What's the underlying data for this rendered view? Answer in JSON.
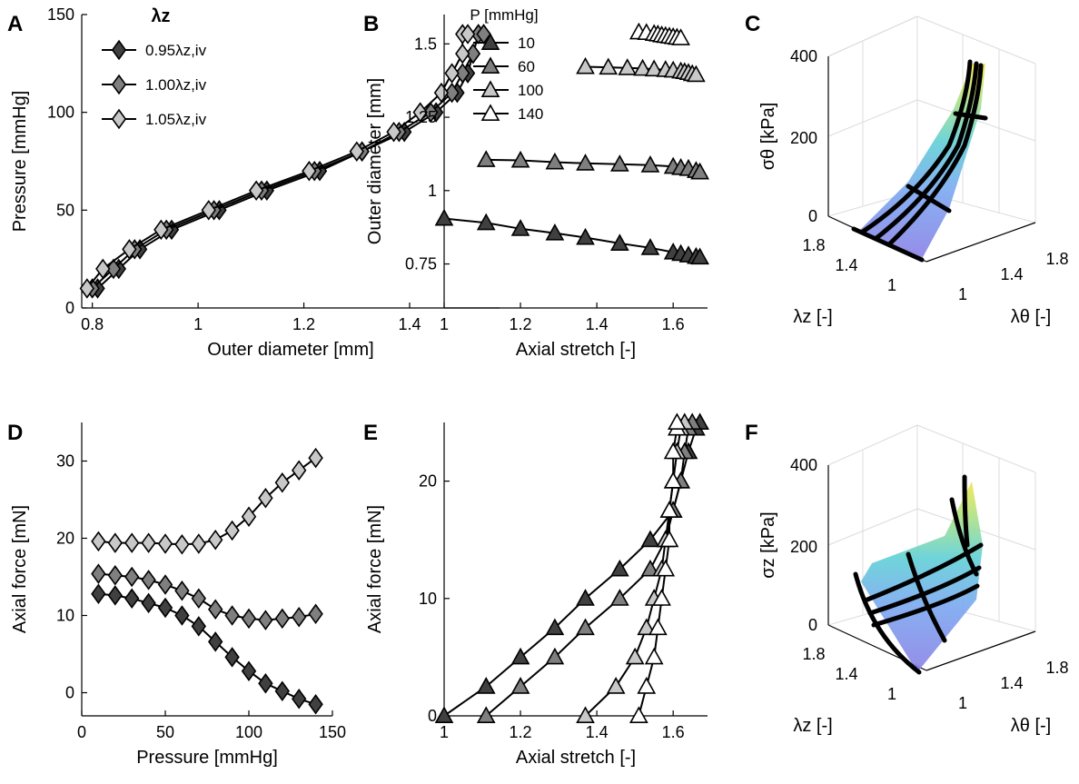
{
  "chart_data": [
    {
      "panel": "A",
      "type": "line",
      "xlabel": "Outer diameter [mm]",
      "ylabel": "Pressure [mmHg]",
      "xlim": [
        0.78,
        1.57
      ],
      "ylim": [
        0,
        150
      ],
      "xticks": [
        "0.8",
        "1",
        "1.2",
        "1.4"
      ],
      "yticks": [
        "0",
        "50",
        "100",
        "150"
      ],
      "legend": {
        "title": "λz",
        "placement": "top-left",
        "entries": [
          "0.95λz,iv",
          "1.00λz,iv",
          "1.05λz,iv"
        ]
      },
      "series": [
        {
          "name": "0.95λz,iv",
          "color": "#404040",
          "x": [
            0.81,
            0.85,
            0.89,
            0.95,
            1.04,
            1.13,
            1.23,
            1.31,
            1.39,
            1.45,
            1.49,
            1.51,
            1.52,
            1.53,
            1.54
          ],
          "y": [
            10,
            20,
            30,
            40,
            50,
            60,
            70,
            80,
            90,
            100,
            110,
            120,
            130,
            140,
            140
          ]
        },
        {
          "name": "1.00λz,iv",
          "color": "#7f7f7f",
          "x": [
            0.8,
            0.84,
            0.88,
            0.94,
            1.03,
            1.12,
            1.22,
            1.31,
            1.38,
            1.44,
            1.48,
            1.5,
            1.52,
            1.53,
            1.54
          ],
          "y": [
            10,
            20,
            30,
            40,
            50,
            60,
            70,
            80,
            90,
            100,
            110,
            120,
            130,
            140,
            140
          ]
        },
        {
          "name": "1.05λz,iv",
          "color": "#c8c8c8",
          "x": [
            0.79,
            0.82,
            0.87,
            0.93,
            1.02,
            1.11,
            1.21,
            1.3,
            1.37,
            1.42,
            1.46,
            1.48,
            1.5,
            1.5,
            1.51
          ],
          "y": [
            10,
            20,
            30,
            40,
            50,
            60,
            70,
            80,
            90,
            100,
            110,
            120,
            130,
            140,
            140
          ]
        }
      ]
    },
    {
      "panel": "B",
      "type": "line",
      "xlabel": "Axial stretch [-]",
      "ylabel": "Outer diameter [mm]",
      "xlim": [
        1.0,
        1.69
      ],
      "ylim": [
        0.6,
        1.6
      ],
      "xticks": [
        "1",
        "1.2",
        "1.4",
        "1.6"
      ],
      "yticks": [
        "0.75",
        "1",
        "1.25",
        "1.5"
      ],
      "legend": {
        "title": "P [mmHg]",
        "placement": "top-left",
        "entries": [
          "10",
          "60",
          "100",
          "140"
        ]
      },
      "series": [
        {
          "name": "10",
          "color": "#404040",
          "x": [
            1.0,
            1.11,
            1.2,
            1.29,
            1.37,
            1.46,
            1.54,
            1.6,
            1.62,
            1.64,
            1.66,
            1.67
          ],
          "y": [
            0.905,
            0.89,
            0.87,
            0.855,
            0.84,
            0.82,
            0.805,
            0.79,
            0.785,
            0.78,
            0.775,
            0.773
          ]
        },
        {
          "name": "60",
          "color": "#7f7f7f",
          "x": [
            1.11,
            1.2,
            1.29,
            1.37,
            1.46,
            1.54,
            1.6,
            1.62,
            1.64,
            1.66,
            1.67
          ],
          "y": [
            1.105,
            1.103,
            1.097,
            1.093,
            1.09,
            1.087,
            1.082,
            1.078,
            1.075,
            1.068,
            1.063
          ]
        },
        {
          "name": "100",
          "color": "#c8c8c8",
          "x": [
            1.37,
            1.43,
            1.48,
            1.52,
            1.55,
            1.58,
            1.6,
            1.62,
            1.63,
            1.64,
            1.65,
            1.66
          ],
          "y": [
            1.422,
            1.42,
            1.418,
            1.416,
            1.414,
            1.412,
            1.41,
            1.407,
            1.405,
            1.402,
            1.398,
            1.395
          ]
        },
        {
          "name": "140",
          "color": "#ffffff",
          "x": [
            1.51,
            1.53,
            1.55,
            1.56,
            1.57,
            1.58,
            1.59,
            1.6,
            1.61,
            1.62
          ],
          "y": [
            1.54,
            1.538,
            1.535,
            1.533,
            1.53,
            1.528,
            1.526,
            1.524,
            1.522,
            1.52
          ]
        }
      ]
    },
    {
      "panel": "C",
      "type": "surface3d",
      "zlabel": "σθ [kPa]",
      "xlabel": "λθ [-]",
      "ylabel": "λz [-]",
      "zticks": [
        "0",
        "200",
        "400"
      ],
      "xticks": [
        "1",
        "1.4",
        "1.8"
      ],
      "yticks": [
        "1",
        "1.4",
        "1.8"
      ]
    },
    {
      "panel": "D",
      "type": "line",
      "xlabel": "Pressure [mmHg]",
      "ylabel": "Axial force [mN]",
      "xlim": [
        0,
        150
      ],
      "ylim": [
        -3,
        35
      ],
      "xticks": [
        "0",
        "50",
        "100",
        "150"
      ],
      "yticks": [
        "0",
        "10",
        "20",
        "30"
      ],
      "series": [
        {
          "name": "0.95λz,iv",
          "color": "#404040",
          "x": [
            10,
            20,
            30,
            40,
            50,
            60,
            70,
            80,
            90,
            100,
            110,
            120,
            130,
            140
          ],
          "y": [
            12.8,
            12.6,
            12.2,
            11.6,
            11.0,
            10.0,
            8.6,
            6.6,
            4.6,
            2.8,
            1.2,
            0.2,
            -0.8,
            -1.5
          ]
        },
        {
          "name": "1.00λz,iv",
          "color": "#7f7f7f",
          "x": [
            10,
            20,
            30,
            40,
            50,
            60,
            70,
            80,
            90,
            100,
            110,
            120,
            130,
            140
          ],
          "y": [
            15.4,
            15.2,
            15.0,
            14.6,
            14.0,
            13.2,
            12.2,
            10.8,
            10.0,
            9.6,
            9.4,
            9.6,
            9.8,
            10.2
          ]
        },
        {
          "name": "1.05λz,iv",
          "color": "#c8c8c8",
          "x": [
            10,
            20,
            30,
            40,
            50,
            60,
            70,
            80,
            90,
            100,
            110,
            120,
            130,
            140
          ],
          "y": [
            19.6,
            19.4,
            19.4,
            19.4,
            19.3,
            19.2,
            19.3,
            19.8,
            21.0,
            22.8,
            25.2,
            27.2,
            28.8,
            30.4
          ]
        }
      ]
    },
    {
      "panel": "E",
      "type": "line",
      "xlabel": "Axial stretch [-]",
      "ylabel": "Axial force [mN]",
      "xlim": [
        1.0,
        1.69
      ],
      "ylim": [
        0,
        25
      ],
      "xticks": [
        "1",
        "1.2",
        "1.4",
        "1.6"
      ],
      "yticks": [
        "0",
        "10",
        "20"
      ],
      "series": [
        {
          "name": "10",
          "color": "#404040",
          "x": [
            1.0,
            1.11,
            1.2,
            1.29,
            1.37,
            1.46,
            1.54,
            1.6,
            1.62,
            1.64,
            1.66,
            1.67
          ],
          "y": [
            0,
            2.5,
            5.0,
            7.5,
            10.0,
            12.5,
            15.0,
            17.5,
            20.0,
            22.5,
            24.5,
            25.0
          ]
        },
        {
          "name": "60",
          "color": "#7f7f7f",
          "x": [
            1.11,
            1.2,
            1.29,
            1.37,
            1.46,
            1.54,
            1.58,
            1.6,
            1.62,
            1.63,
            1.64,
            1.65
          ],
          "y": [
            0,
            2.5,
            5.0,
            7.5,
            10.0,
            12.5,
            15.0,
            17.5,
            20.0,
            22.5,
            24.5,
            25.0
          ]
        },
        {
          "name": "100",
          "color": "#c8c8c8",
          "x": [
            1.37,
            1.45,
            1.5,
            1.53,
            1.55,
            1.57,
            1.58,
            1.59,
            1.6,
            1.61,
            1.62,
            1.63
          ],
          "y": [
            0,
            2.5,
            5.0,
            7.5,
            10.0,
            12.5,
            15.0,
            17.5,
            20.0,
            22.5,
            24.5,
            25.0
          ]
        },
        {
          "name": "140",
          "color": "#ffffff",
          "x": [
            1.51,
            1.53,
            1.55,
            1.56,
            1.57,
            1.58,
            1.59,
            1.59,
            1.6,
            1.6,
            1.61,
            1.61
          ],
          "y": [
            0,
            2.5,
            5.0,
            7.5,
            10.0,
            12.5,
            15.0,
            17.5,
            20.0,
            22.5,
            24.5,
            25.0
          ]
        }
      ]
    },
    {
      "panel": "F",
      "type": "surface3d",
      "zlabel": "σz [kPa]",
      "xlabel": "λθ [-]",
      "ylabel": "λz [-]",
      "zticks": [
        "0",
        "200",
        "400"
      ],
      "xticks": [
        "1",
        "1.4",
        "1.8"
      ],
      "yticks": [
        "1",
        "1.4",
        "1.8"
      ]
    }
  ]
}
